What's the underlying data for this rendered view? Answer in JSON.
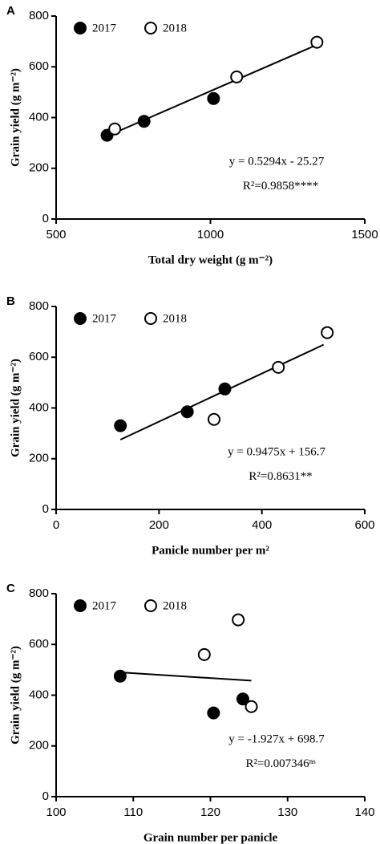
{
  "chart_data": [
    {
      "type": "scatter",
      "panel_label": "A",
      "x_label": "Total dry weight (g m⁻²)",
      "y_label": "Grain yield (g m⁻²)",
      "xlim": [
        500,
        1500
      ],
      "ylim": [
        0,
        800
      ],
      "xticks": [
        500,
        1000,
        1500
      ],
      "yticks": [
        0,
        200,
        400,
        600,
        800
      ],
      "series": [
        {
          "name": "2017",
          "color": "#000000",
          "filled": true,
          "x": [
            665,
            785,
            1010
          ],
          "values": [
            330,
            385,
            475
          ]
        },
        {
          "name": "2018",
          "color": "#000000",
          "filled": false,
          "x": [
            690,
            1085,
            1345
          ],
          "values": [
            355,
            560,
            697
          ]
        }
      ],
      "fit": {
        "slope": 0.5294,
        "intercept": -25.27,
        "x": [
          660,
          1350
        ]
      },
      "equation": "y = 0.5294x - 25.27",
      "r2_label": "R²=0.9858****"
    },
    {
      "type": "scatter",
      "panel_label": "B",
      "x_label": "Panicle number per m²",
      "y_label": "Grain yield (g m⁻²)",
      "xlim": [
        0,
        600
      ],
      "ylim": [
        0,
        800
      ],
      "xticks": [
        0,
        200,
        400,
        600
      ],
      "yticks": [
        0,
        200,
        400,
        600,
        800
      ],
      "series": [
        {
          "name": "2017",
          "color": "#000000",
          "filled": true,
          "x": [
            125,
            255,
            328
          ],
          "values": [
            330,
            385,
            475
          ]
        },
        {
          "name": "2018",
          "color": "#000000",
          "filled": false,
          "x": [
            307,
            432,
            527
          ],
          "values": [
            355,
            560,
            697
          ]
        }
      ],
      "fit": {
        "slope": 0.9475,
        "intercept": 156.7,
        "x": [
          125,
          520
        ]
      },
      "equation": "y = 0.9475x + 156.7",
      "r2_label": "R²=0.8631**"
    },
    {
      "type": "scatter",
      "panel_label": "C",
      "x_label": "Grain number per panicle",
      "y_label": "Grain yield (g m⁻²)",
      "xlim": [
        100,
        140
      ],
      "ylim": [
        0,
        800
      ],
      "xticks": [
        100,
        110,
        120,
        130,
        140
      ],
      "yticks": [
        0,
        200,
        400,
        600,
        800
      ],
      "series": [
        {
          "name": "2017",
          "color": "#000000",
          "filled": true,
          "x": [
            108.3,
            120.4,
            124.2
          ],
          "values": [
            475,
            330,
            385
          ]
        },
        {
          "name": "2018",
          "color": "#000000",
          "filled": false,
          "x": [
            119.2,
            123.6,
            125.3
          ],
          "values": [
            560,
            697,
            355
          ]
        }
      ],
      "fit": {
        "slope": -1.927,
        "intercept": 698.7,
        "x": [
          108,
          125.3
        ]
      },
      "equation": "y = -1.927x + 698.7",
      "r2_label": "R²=0.007346ⁿˢ"
    }
  ]
}
